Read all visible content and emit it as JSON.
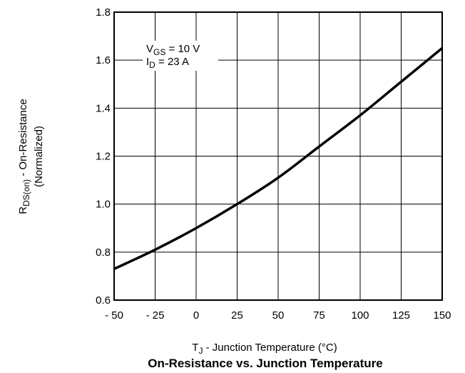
{
  "chart_data": {
    "type": "line",
    "title": "On-Resistance vs. Junction Temperature",
    "xlabel_main": "T",
    "xlabel_sub": "J",
    "xlabel_rest": " - Junction Temperature (°C)",
    "ylabel_main": "R",
    "ylabel_sub": "DS(on)",
    "ylabel_rest": " - On-Resistance",
    "ylabel_line2": "(Normalized)",
    "xlim": [
      -50,
      150
    ],
    "ylim": [
      0.6,
      1.8
    ],
    "xticks": [
      -50,
      -25,
      0,
      25,
      50,
      75,
      100,
      125,
      150
    ],
    "xtick_labels": [
      "- 50",
      "- 25",
      "0",
      "25",
      "50",
      "75",
      "100",
      "125",
      "150"
    ],
    "yticks": [
      0.6,
      0.8,
      1.0,
      1.2,
      1.4,
      1.6,
      1.8
    ],
    "ytick_labels": [
      "0.6",
      "0.8",
      "1.0",
      "1.2",
      "1.4",
      "1.6",
      "1.8"
    ],
    "grid": true,
    "annotations": [
      {
        "main": "V",
        "sub": "GS",
        "rest": " = 10 V"
      },
      {
        "main": "I",
        "sub": "D",
        "rest": " = 23 A"
      }
    ],
    "series": [
      {
        "x": [
          -50,
          -25,
          0,
          25,
          50,
          75,
          100,
          125,
          150
        ],
        "y": [
          0.73,
          0.81,
          0.9,
          1.0,
          1.11,
          1.24,
          1.37,
          1.51,
          1.65
        ]
      }
    ]
  }
}
